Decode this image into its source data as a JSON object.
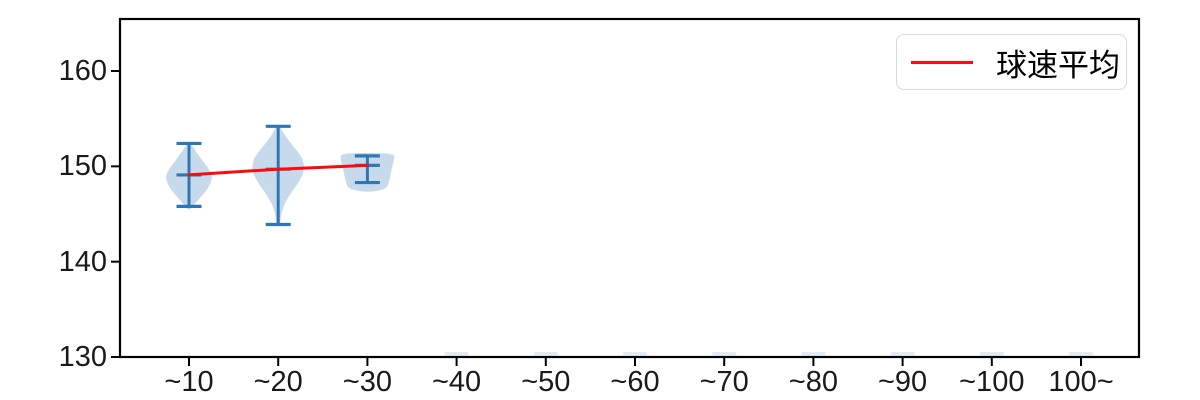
{
  "chart_data": {
    "type": "violin",
    "title": "",
    "xlabel": "",
    "ylabel": "",
    "categories": [
      "~10",
      "~20",
      "~30",
      "~40",
      "~50",
      "~60",
      "~70",
      "~80",
      "~90",
      "~100",
      "100~"
    ],
    "yticks": [
      160,
      150,
      140,
      130
    ],
    "ylim": [
      130,
      165.5
    ],
    "grid": false,
    "legend": {
      "label": "球速平均",
      "position": "upper right"
    },
    "series": [
      {
        "name": "球速平均",
        "type": "line",
        "color": "#f70d0d",
        "categories": [
          "~10",
          "~20",
          "~30"
        ],
        "values": [
          149.1,
          149.7,
          150.1
        ]
      }
    ],
    "violins": [
      {
        "category": "~10",
        "min": 145.8,
        "max": 152.4,
        "mean": 149.1,
        "outline": [
          [
            152.5,
            0.07
          ],
          [
            152.0,
            0.18
          ],
          [
            151.3,
            0.38
          ],
          [
            150.5,
            0.62
          ],
          [
            149.8,
            0.84
          ],
          [
            149.2,
            0.97
          ],
          [
            148.8,
            1.0
          ],
          [
            148.2,
            0.93
          ],
          [
            147.5,
            0.76
          ],
          [
            146.8,
            0.52
          ],
          [
            146.2,
            0.3
          ],
          [
            145.8,
            0.15
          ],
          [
            145.5,
            0.07
          ]
        ]
      },
      {
        "category": "~20",
        "min": 143.9,
        "max": 154.2,
        "mean": 149.7,
        "outline": [
          [
            154.3,
            0.06
          ],
          [
            153.8,
            0.14
          ],
          [
            153.1,
            0.3
          ],
          [
            152.3,
            0.52
          ],
          [
            151.5,
            0.76
          ],
          [
            150.8,
            0.93
          ],
          [
            150.0,
            1.0
          ],
          [
            149.2,
            0.95
          ],
          [
            148.4,
            0.8
          ],
          [
            147.6,
            0.6
          ],
          [
            146.8,
            0.4
          ],
          [
            146.0,
            0.24
          ],
          [
            145.2,
            0.14
          ],
          [
            144.5,
            0.09
          ],
          [
            143.9,
            0.07
          ]
        ]
      },
      {
        "category": "~30",
        "min": 148.3,
        "max": 151.1,
        "mean": 150.1,
        "outline": [
          [
            151.4,
            0.25
          ],
          [
            151.35,
            0.75
          ],
          [
            151.2,
            0.97
          ],
          [
            150.9,
            1.0
          ],
          [
            150.2,
            0.94
          ],
          [
            149.3,
            0.87
          ],
          [
            148.5,
            0.81
          ],
          [
            147.9,
            0.74
          ],
          [
            147.6,
            0.6
          ],
          [
            147.45,
            0.38
          ],
          [
            147.35,
            0.15
          ]
        ]
      }
    ],
    "empty_categories": [
      "~40",
      "~50",
      "~60",
      "~70",
      "~80",
      "~90",
      "~100",
      "100~"
    ]
  },
  "colors": {
    "violin_fill": "#c6daec",
    "violin_edge": "#2f77b4",
    "mean_line": "#f70d0d",
    "axis": "#000000",
    "tick_text": "#1a1a1a",
    "legend_border": "#d9d9d9",
    "legend_bg": "#ffffff"
  }
}
